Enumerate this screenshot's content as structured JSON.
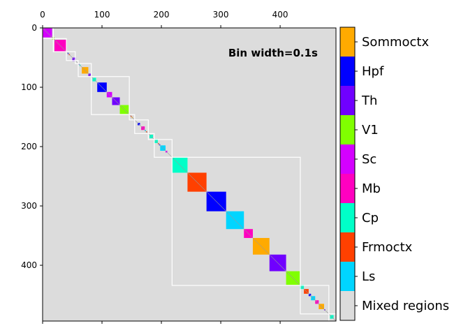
{
  "chart_data": {
    "type": "heatmap",
    "title": "",
    "xlabel": "",
    "ylabel": "",
    "annotation": "Bin width=0.1s",
    "xlim": [
      0,
      494
    ],
    "ylim": [
      0,
      494
    ],
    "x_ticks": [
      0,
      100,
      200,
      300,
      400
    ],
    "y_ticks": [
      0,
      100,
      200,
      300,
      400
    ],
    "x_axis_position": "top",
    "grid": false,
    "background_color": "#dcdcdc",
    "legend_placement": "right-colorbar",
    "categories": [
      {
        "name": "Mixed regions",
        "color": "#dcdcdc"
      },
      {
        "name": "Ls",
        "color": "#00d5ff"
      },
      {
        "name": "Frmoctx",
        "color": "#ff4000"
      },
      {
        "name": "Cp",
        "color": "#00ffc8"
      },
      {
        "name": "Mb",
        "color": "#ff00c0"
      },
      {
        "name": "Sc",
        "color": "#d400ff"
      },
      {
        "name": "V1",
        "color": "#80ff00"
      },
      {
        "name": "Th",
        "color": "#7000ff"
      },
      {
        "name": "Hpf",
        "color": "#0000ff"
      },
      {
        "name": "Sommoctx",
        "color": "#ffaa00"
      }
    ],
    "diagonal_blocks": [
      {
        "start": 0,
        "end": 16,
        "region": "Sc"
      },
      {
        "start": 16,
        "end": 20,
        "region": "V1"
      },
      {
        "start": 20,
        "end": 40,
        "region": "Mb"
      },
      {
        "start": 42,
        "end": 44,
        "region": "Hpf"
      },
      {
        "start": 44,
        "end": 46,
        "region": "Frmoctx"
      },
      {
        "start": 50,
        "end": 56,
        "region": "Th"
      },
      {
        "start": 60,
        "end": 62,
        "region": "Hpf"
      },
      {
        "start": 62,
        "end": 64,
        "region": "Cp"
      },
      {
        "start": 66,
        "end": 77,
        "region": "Sommoctx"
      },
      {
        "start": 77,
        "end": 81,
        "region": "Th"
      },
      {
        "start": 84,
        "end": 90,
        "region": "Cp"
      },
      {
        "start": 92,
        "end": 108,
        "region": "Hpf"
      },
      {
        "start": 108,
        "end": 117,
        "region": "Sc"
      },
      {
        "start": 117,
        "end": 130,
        "region": "Th"
      },
      {
        "start": 130,
        "end": 145,
        "region": "V1"
      },
      {
        "start": 148,
        "end": 150,
        "region": "Frmoctx"
      },
      {
        "start": 150,
        "end": 152,
        "region": "Sommoctx"
      },
      {
        "start": 160,
        "end": 164,
        "region": "Hpf"
      },
      {
        "start": 166,
        "end": 172,
        "region": "Mb"
      },
      {
        "start": 172,
        "end": 174,
        "region": "Ls"
      },
      {
        "start": 174,
        "end": 176,
        "region": "Frmoctx"
      },
      {
        "start": 180,
        "end": 186,
        "region": "Cp"
      },
      {
        "start": 188,
        "end": 194,
        "region": "Cp"
      },
      {
        "start": 194,
        "end": 196,
        "region": "Frmoctx"
      },
      {
        "start": 196,
        "end": 198,
        "region": "Hpf"
      },
      {
        "start": 198,
        "end": 207,
        "region": "Ls"
      },
      {
        "start": 207,
        "end": 210,
        "region": "Sc"
      },
      {
        "start": 218,
        "end": 244,
        "region": "Cp"
      },
      {
        "start": 244,
        "end": 276,
        "region": "Frmoctx"
      },
      {
        "start": 276,
        "end": 309,
        "region": "Hpf"
      },
      {
        "start": 309,
        "end": 339,
        "region": "Ls"
      },
      {
        "start": 339,
        "end": 354,
        "region": "Mb"
      },
      {
        "start": 354,
        "end": 382,
        "region": "Sommoctx"
      },
      {
        "start": 382,
        "end": 410,
        "region": "Th"
      },
      {
        "start": 410,
        "end": 433,
        "region": "V1"
      },
      {
        "start": 433,
        "end": 440,
        "region": "Cp"
      },
      {
        "start": 440,
        "end": 448,
        "region": "Frmoctx"
      },
      {
        "start": 448,
        "end": 452,
        "region": "Hpf"
      },
      {
        "start": 452,
        "end": 459,
        "region": "Ls"
      },
      {
        "start": 459,
        "end": 465,
        "region": "Mb"
      },
      {
        "start": 465,
        "end": 474,
        "region": "Sommoctx"
      },
      {
        "start": 474,
        "end": 476,
        "region": "Th"
      },
      {
        "start": 484,
        "end": 490,
        "region": "Cp"
      }
    ],
    "cluster_outlines": [
      {
        "start": 0,
        "end": 18
      },
      {
        "start": 18,
        "end": 40
      },
      {
        "start": 40,
        "end": 55
      },
      {
        "start": 55,
        "end": 60
      },
      {
        "start": 60,
        "end": 82
      },
      {
        "start": 82,
        "end": 146
      },
      {
        "start": 146,
        "end": 155
      },
      {
        "start": 155,
        "end": 178
      },
      {
        "start": 178,
        "end": 188
      },
      {
        "start": 188,
        "end": 218
      },
      {
        "start": 218,
        "end": 434
      },
      {
        "start": 434,
        "end": 482
      },
      {
        "start": 482,
        "end": 494
      }
    ]
  }
}
